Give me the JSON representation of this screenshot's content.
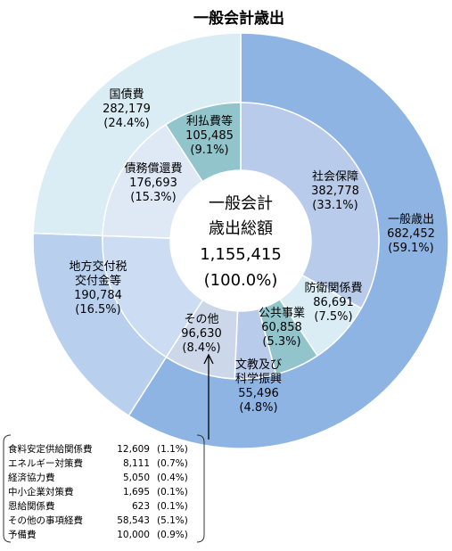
{
  "chart_data": {
    "type": "pie",
    "title": "一般会計歳出",
    "center": {
      "line1": "一般会計",
      "line2": "歳出総額",
      "value": "1,155,415",
      "pct": "(100.0%)"
    },
    "outer_ring": [
      {
        "name": "一般歳出",
        "value": 682452,
        "value_text": "682,452",
        "pct": "(59.1%)",
        "color": "#8eb4e3"
      },
      {
        "name": "地方交付税\n交付金等",
        "value": 190784,
        "value_text": "190,784",
        "pct": "(16.5%)",
        "color": "#b8d0ee"
      },
      {
        "name": "国債費",
        "value": 282179,
        "value_text": "282,179",
        "pct": "(24.4%)",
        "color": "#daedf5"
      }
    ],
    "inner_ring": [
      {
        "name": "社会保障",
        "value": 382778,
        "value_text": "382,778",
        "pct": "(33.1%)",
        "color": "#b9cbea"
      },
      {
        "name": "防衛関係費",
        "value": 86691,
        "value_text": "86,691",
        "pct": "(7.5%)",
        "color": "#daedf5"
      },
      {
        "name": "公共事業",
        "value": 60858,
        "value_text": "60,858",
        "pct": "(5.3%)",
        "color": "#92c4cb"
      },
      {
        "name": "文教及び\n科学振興",
        "value": 55496,
        "value_text": "55,496",
        "pct": "(4.8%)",
        "color": "#b9cbea"
      },
      {
        "name": "その他",
        "value": 96630,
        "value_text": "96,630",
        "pct": "(8.4%)",
        "color": "#ccd7ea"
      },
      {
        "name": "地方交付税交付金等",
        "value": 190784,
        "color": "#ccdcf2"
      },
      {
        "name": "債務償還費",
        "value": 176693,
        "value_text": "176,693",
        "pct": "(15.3%)",
        "color": "#dfe8f5"
      },
      {
        "name": "利払費等",
        "value": 105485,
        "value_text": "105,485",
        "pct": "(9.1%)",
        "color": "#92c4cb"
      }
    ],
    "breakdown": [
      {
        "name": "食料安定供給関係費",
        "value": "12,609",
        "pct": "(1.1%)"
      },
      {
        "name": "エネルギー対策費",
        "value": "8,111",
        "pct": "(0.7%)"
      },
      {
        "name": "経済協力費",
        "value": "5,050",
        "pct": "(0.4%)"
      },
      {
        "name": "中小企業対策費",
        "value": "1,695",
        "pct": "(0.1%)"
      },
      {
        "name": "恩給関係費",
        "value": "623",
        "pct": "(0.1%)"
      },
      {
        "name": "その他の事項経費",
        "value": "58,543",
        "pct": "(5.1%)"
      },
      {
        "name": "予備費",
        "value": "10,000",
        "pct": "(0.9%)"
      }
    ]
  }
}
